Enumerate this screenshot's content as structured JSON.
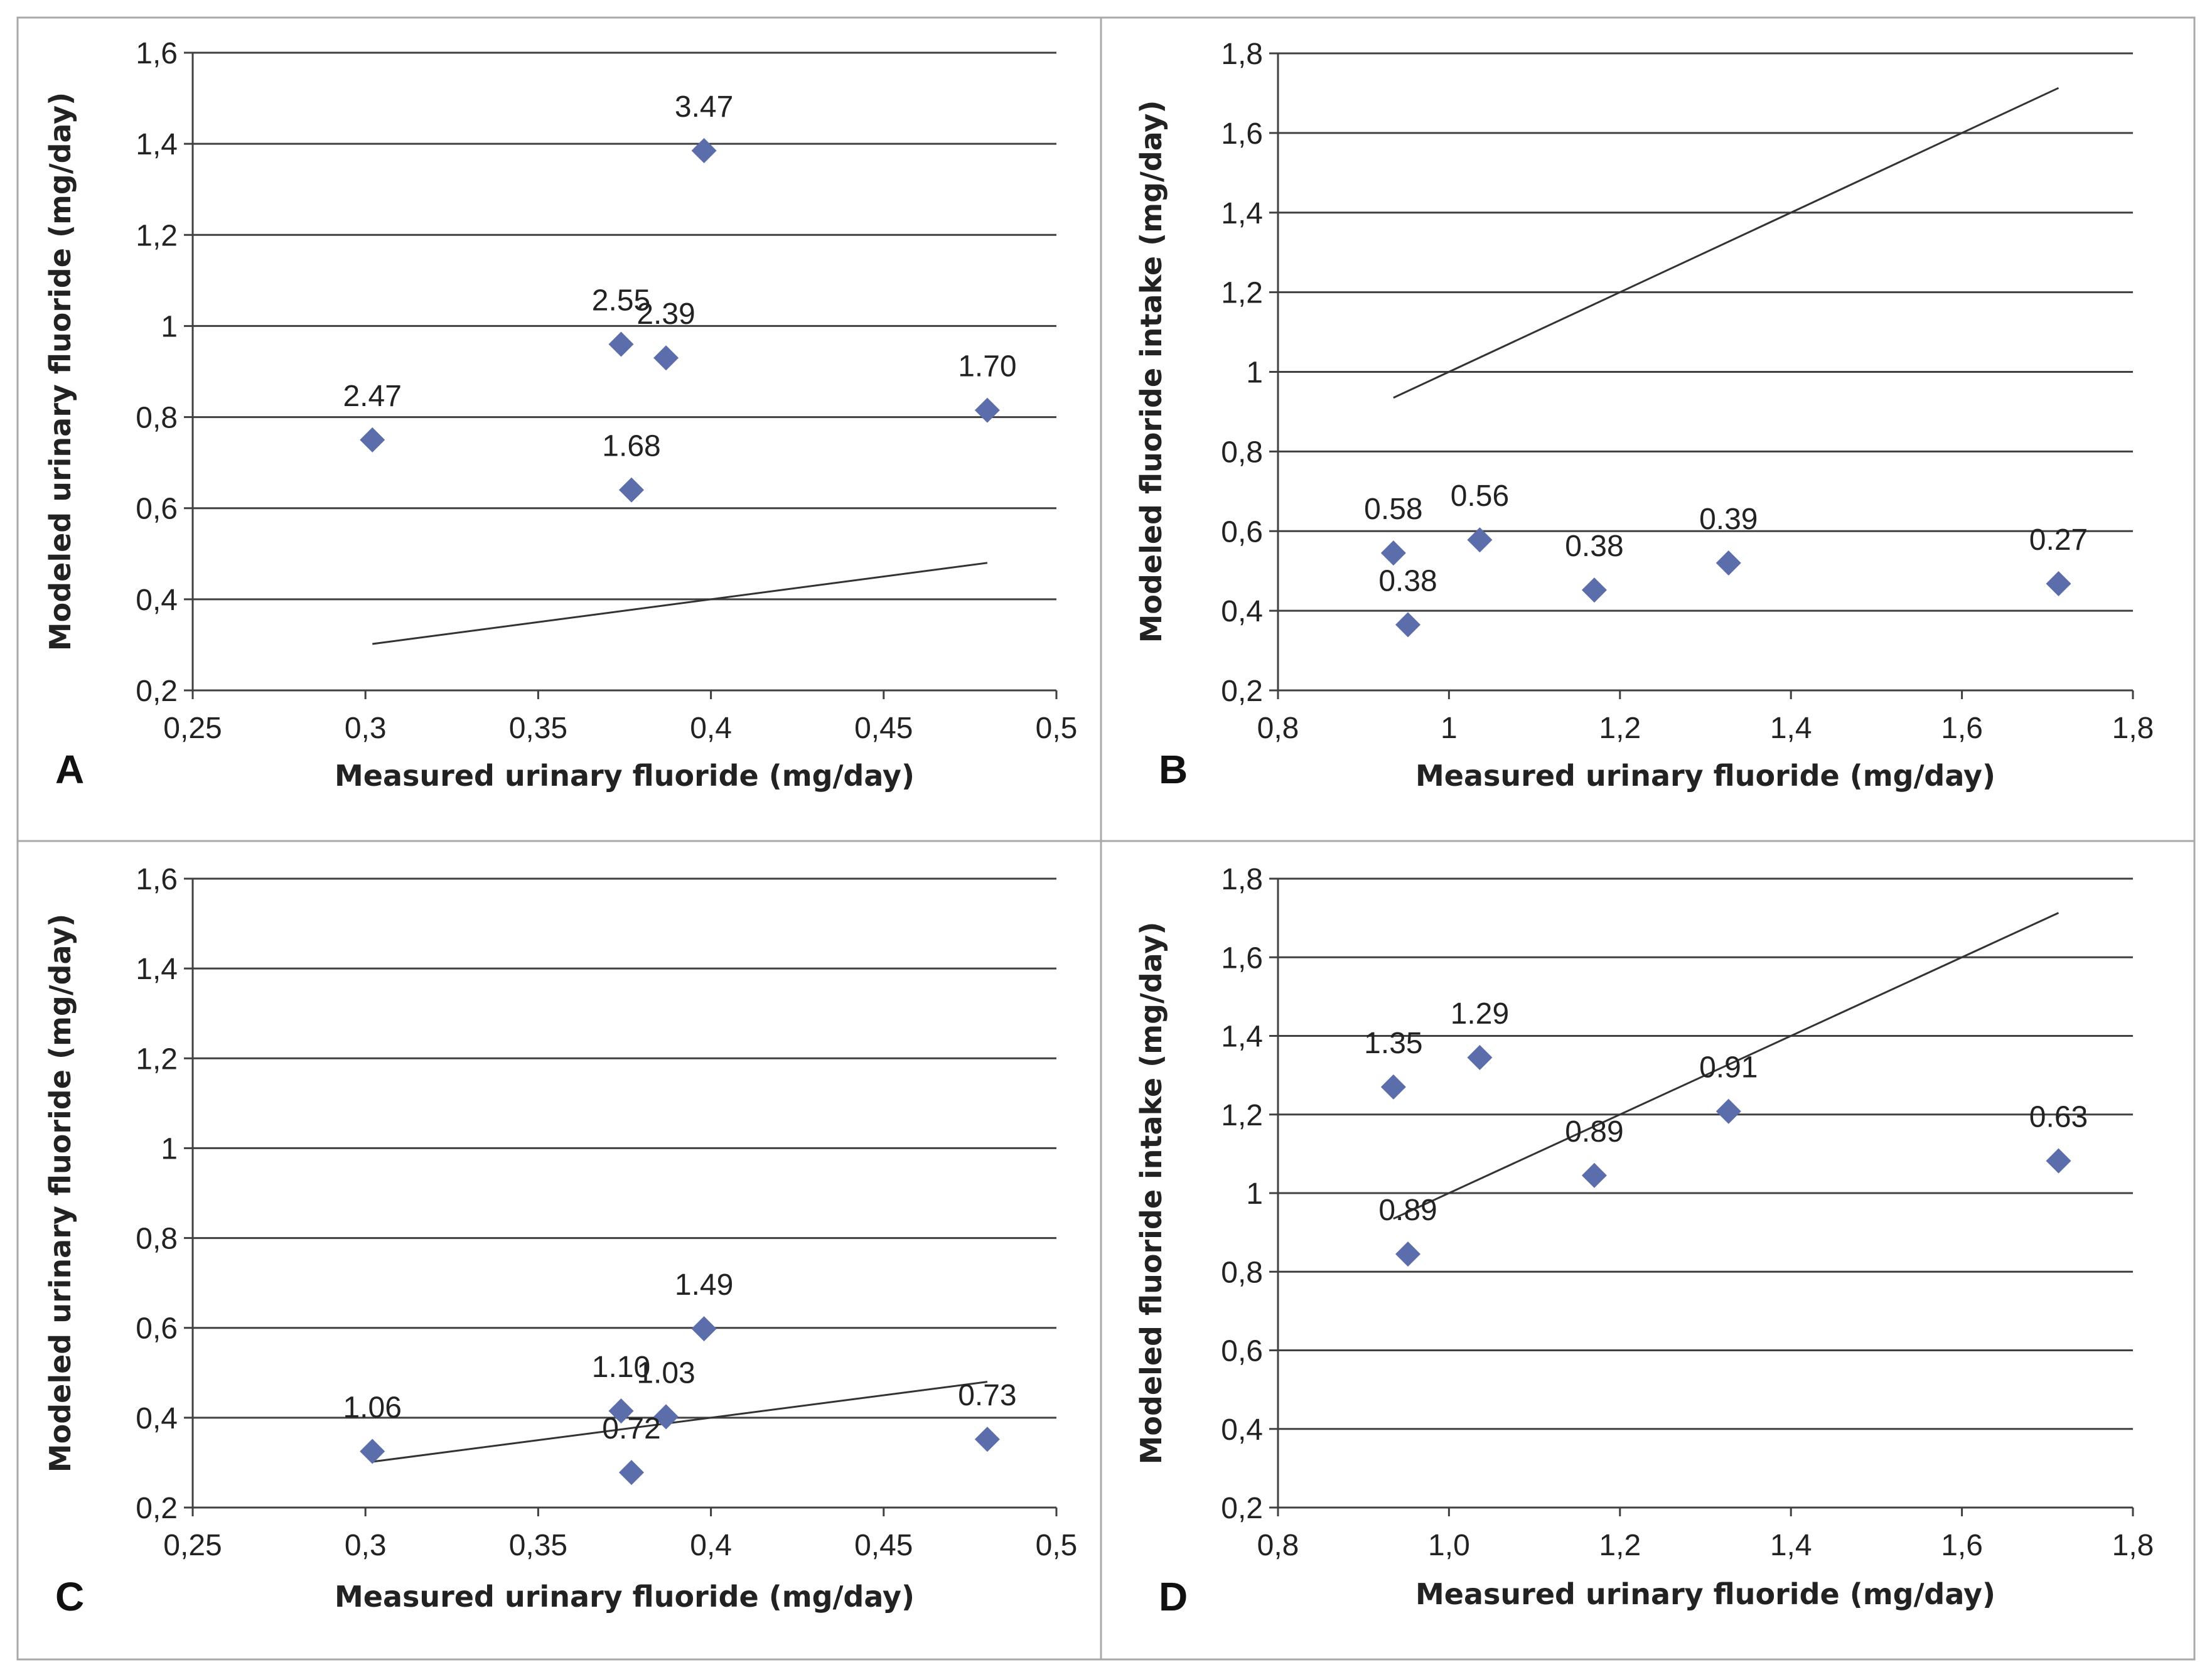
{
  "chart_data": [
    {
      "panel": "A",
      "type": "scatter",
      "xlabel": "Measured urinary fluoride (mg/day)",
      "ylabel": "Modeled urinary fluoride (mg/day)",
      "xlim": [
        0.25,
        0.5
      ],
      "ylim": [
        0.2,
        1.6
      ],
      "x_ticks": [
        0.25,
        0.3,
        0.35,
        0.4,
        0.45,
        0.5
      ],
      "x_tick_labels": [
        "0,25",
        "0,3",
        "0,35",
        "0,4",
        "0,45",
        "0,5"
      ],
      "y_ticks": [
        0.2,
        0.4,
        0.6,
        0.8,
        1.0,
        1.2,
        1.4,
        1.6
      ],
      "y_tick_labels": [
        "0,2",
        "0,4",
        "0,6",
        "0,8",
        "1",
        "1,2",
        "1,4",
        "1,6"
      ],
      "grid": true,
      "points": [
        {
          "x": 0.302,
          "y": 0.75,
          "label": "2.47"
        },
        {
          "x": 0.374,
          "y": 0.96,
          "label": "2.55"
        },
        {
          "x": 0.387,
          "y": 0.93,
          "label": "2.39"
        },
        {
          "x": 0.377,
          "y": 0.64,
          "label": "1.68"
        },
        {
          "x": 0.398,
          "y": 1.385,
          "label": "3.47"
        },
        {
          "x": 0.48,
          "y": 0.815,
          "label": "1.70"
        }
      ],
      "reference_line": {
        "x": [
          0.302,
          0.48
        ],
        "y": [
          0.302,
          0.48
        ]
      }
    },
    {
      "panel": "B",
      "type": "scatter",
      "xlabel": "Measured urinary fluoride (mg/day)",
      "ylabel": "Modeled fluoride intake (mg/day)",
      "xlim": [
        0.8,
        1.8
      ],
      "ylim": [
        0.2,
        1.8
      ],
      "x_ticks": [
        0.8,
        1.0,
        1.2,
        1.4,
        1.6,
        1.8
      ],
      "x_tick_labels": [
        "0,8",
        "1",
        "1,2",
        "1,4",
        "1,6",
        "1,8"
      ],
      "y_ticks": [
        0.2,
        0.4,
        0.6,
        0.8,
        1.0,
        1.2,
        1.4,
        1.6,
        1.8
      ],
      "y_tick_labels": [
        "0,2",
        "0,4",
        "0,6",
        "0,8",
        "1",
        "1,2",
        "1,4",
        "1,6",
        "1,8"
      ],
      "grid": true,
      "points": [
        {
          "x": 0.935,
          "y": 0.545,
          "label": "0.58"
        },
        {
          "x": 0.952,
          "y": 0.365,
          "label": "0.38"
        },
        {
          "x": 1.036,
          "y": 0.578,
          "label": "0.56"
        },
        {
          "x": 1.17,
          "y": 0.452,
          "label": "0.38"
        },
        {
          "x": 1.327,
          "y": 0.52,
          "label": "0.39"
        },
        {
          "x": 1.713,
          "y": 0.468,
          "label": "0.27"
        }
      ],
      "reference_line": {
        "x": [
          0.935,
          1.713
        ],
        "y": [
          0.935,
          1.713
        ]
      }
    },
    {
      "panel": "C",
      "type": "scatter",
      "xlabel": "Measured urinary fluoride (mg/day)",
      "ylabel": "Modeled urinary fluoride (mg/day)",
      "xlim": [
        0.25,
        0.5
      ],
      "ylim": [
        0.2,
        1.6
      ],
      "x_ticks": [
        0.25,
        0.3,
        0.35,
        0.4,
        0.45,
        0.5
      ],
      "x_tick_labels": [
        "0,25",
        "0,3",
        "0,35",
        "0,4",
        "0,45",
        "0,5"
      ],
      "y_ticks": [
        0.2,
        0.4,
        0.6,
        0.8,
        1.0,
        1.2,
        1.4,
        1.6
      ],
      "y_tick_labels": [
        "0,2",
        "0,4",
        "0,6",
        "0,8",
        "1",
        "1,2",
        "1,4",
        "1,6"
      ],
      "grid": true,
      "points": [
        {
          "x": 0.302,
          "y": 0.325,
          "label": "1.06"
        },
        {
          "x": 0.374,
          "y": 0.415,
          "label": "1.10"
        },
        {
          "x": 0.387,
          "y": 0.402,
          "label": "1.03"
        },
        {
          "x": 0.377,
          "y": 0.278,
          "label": "0.72"
        },
        {
          "x": 0.398,
          "y": 0.598,
          "label": "1.49"
        },
        {
          "x": 0.48,
          "y": 0.352,
          "label": "0.73"
        }
      ],
      "reference_line": {
        "x": [
          0.302,
          0.48
        ],
        "y": [
          0.302,
          0.48
        ]
      }
    },
    {
      "panel": "D",
      "type": "scatter",
      "xlabel": "Measured urinary fluoride (mg/day)",
      "ylabel": "Modeled fluoride intake (mg/day)",
      "xlim": [
        0.8,
        1.8
      ],
      "ylim": [
        0.2,
        1.8
      ],
      "x_ticks": [
        0.8,
        1.0,
        1.2,
        1.4,
        1.6,
        1.8
      ],
      "x_tick_labels": [
        "0,8",
        "1,0",
        "1,2",
        "1,4",
        "1,6",
        "1,8"
      ],
      "y_ticks": [
        0.2,
        0.4,
        0.6,
        0.8,
        1.0,
        1.2,
        1.4,
        1.6,
        1.8
      ],
      "y_tick_labels": [
        "0,2",
        "0,4",
        "0,6",
        "0,8",
        "1",
        "1,2",
        "1,4",
        "1,6",
        "1,8"
      ],
      "grid": true,
      "points": [
        {
          "x": 0.935,
          "y": 1.27,
          "label": "1.35"
        },
        {
          "x": 0.952,
          "y": 0.845,
          "label": "0.89"
        },
        {
          "x": 1.036,
          "y": 1.345,
          "label": "1.29"
        },
        {
          "x": 1.17,
          "y": 1.045,
          "label": "0.89"
        },
        {
          "x": 1.327,
          "y": 1.208,
          "label": "0.91"
        },
        {
          "x": 1.713,
          "y": 1.082,
          "label": "0.63"
        }
      ],
      "reference_line": {
        "x": [
          0.935,
          1.713
        ],
        "y": [
          0.935,
          1.713
        ]
      }
    }
  ],
  "style": {
    "marker_color": "#5b6dab",
    "line_color": "#333333",
    "grid_color": "#404040",
    "frame_color": "#a8a8a8"
  }
}
